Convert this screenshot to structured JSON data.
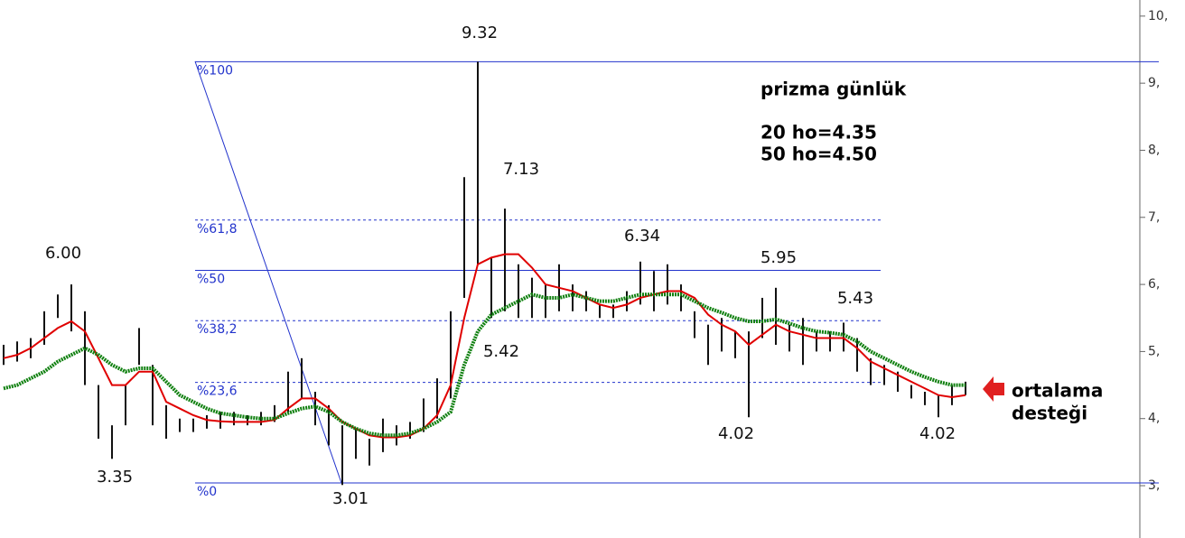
{
  "chart_data": {
    "type": "hilo",
    "annotations": [
      "9.32",
      "7.13",
      "6.34",
      "5.95",
      "5.43",
      "5.42",
      "6.00",
      "3.35",
      "3.01",
      "4.02",
      "4.02"
    ],
    "note_title": "prizma günlük",
    "note_lines": [
      "20 ho=4.35",
      "50 ho=4.50"
    ],
    "callout": [
      "ortalama",
      "desteği"
    ],
    "ylim": [
      2.22,
      10.24
    ],
    "yticks": [
      {
        "value": 10,
        "label": "10,"
      },
      {
        "value": 9,
        "label": "9,"
      },
      {
        "value": 8,
        "label": "8,"
      },
      {
        "value": 7,
        "label": "7,"
      },
      {
        "value": 6,
        "label": "6,"
      },
      {
        "value": 5,
        "label": "5,"
      },
      {
        "value": 4,
        "label": "4,"
      },
      {
        "value": 3,
        "label": "3,"
      }
    ],
    "fib_levels": [
      {
        "label": "%100",
        "value": 9.32
      },
      {
        "label": "%61,8",
        "value": 6.96
      },
      {
        "label": "%50",
        "value": 6.21
      },
      {
        "label": "%38,2",
        "value": 5.46
      },
      {
        "label": "%23,6",
        "value": 4.54
      },
      {
        "label": "%0",
        "value": 3.04
      }
    ],
    "categories": [
      null,
      null,
      null,
      null,
      null,
      null,
      null,
      null,
      null,
      null,
      null,
      null,
      null,
      null,
      null,
      null,
      null,
      null,
      null,
      null,
      null,
      null,
      null,
      null,
      null,
      null,
      null,
      null,
      null,
      null,
      null,
      null,
      null,
      null,
      null,
      null,
      null,
      null,
      null,
      null,
      null,
      null,
      null,
      null,
      null,
      null,
      null,
      null,
      null,
      null,
      null,
      null,
      null,
      null,
      null,
      null,
      null,
      null,
      null,
      null,
      null,
      null,
      null,
      null,
      null,
      null,
      null,
      null,
      null,
      null,
      null,
      null
    ],
    "high": [
      5.1,
      5.15,
      5.2,
      5.6,
      5.85,
      6.0,
      5.6,
      4.5,
      3.9,
      4.5,
      5.35,
      4.8,
      4.2,
      4.0,
      4.0,
      4.05,
      4.1,
      4.1,
      4.05,
      4.1,
      4.2,
      4.7,
      4.9,
      4.4,
      4.2,
      3.9,
      3.85,
      3.7,
      4.0,
      3.9,
      3.95,
      4.3,
      4.6,
      5.6,
      7.6,
      9.32,
      6.4,
      7.13,
      6.3,
      6.1,
      6.0,
      6.3,
      6.0,
      5.9,
      5.7,
      5.7,
      5.9,
      6.34,
      6.2,
      6.3,
      6.0,
      5.6,
      5.4,
      5.5,
      5.3,
      5.3,
      5.8,
      5.95,
      5.4,
      5.5,
      5.3,
      5.3,
      5.43,
      5.2,
      4.9,
      4.8,
      4.7,
      4.5,
      4.4,
      4.35,
      4.5,
      4.55
    ],
    "low": [
      4.8,
      4.85,
      4.9,
      5.1,
      5.5,
      5.3,
      4.5,
      3.7,
      3.4,
      3.9,
      4.8,
      3.9,
      3.7,
      3.8,
      3.8,
      3.85,
      3.85,
      3.9,
      3.9,
      3.9,
      3.95,
      4.1,
      4.3,
      3.9,
      3.6,
      3.01,
      3.4,
      3.3,
      3.5,
      3.6,
      3.7,
      3.8,
      4.0,
      4.3,
      5.8,
      6.3,
      5.5,
      5.6,
      5.5,
      5.5,
      5.5,
      5.6,
      5.6,
      5.6,
      5.5,
      5.5,
      5.6,
      5.7,
      5.6,
      5.7,
      5.6,
      5.2,
      4.8,
      5.0,
      4.9,
      4.02,
      5.2,
      5.1,
      5.0,
      4.8,
      5.0,
      5.0,
      5.0,
      4.7,
      4.5,
      4.5,
      4.4,
      4.3,
      4.2,
      4.02,
      4.2,
      4.35
    ],
    "series": [
      {
        "name": "20 ho",
        "color": "#e00000",
        "values": [
          4.9,
          4.95,
          5.05,
          5.2,
          5.35,
          5.45,
          5.3,
          4.9,
          4.5,
          4.5,
          4.7,
          4.7,
          4.25,
          4.15,
          4.05,
          3.98,
          3.96,
          3.95,
          3.95,
          3.95,
          3.98,
          4.15,
          4.3,
          4.3,
          4.15,
          3.95,
          3.85,
          3.75,
          3.72,
          3.72,
          3.75,
          3.85,
          4.05,
          4.5,
          5.5,
          6.3,
          6.4,
          6.45,
          6.45,
          6.25,
          6.0,
          5.95,
          5.9,
          5.8,
          5.7,
          5.65,
          5.7,
          5.8,
          5.85,
          5.9,
          5.9,
          5.8,
          5.55,
          5.4,
          5.3,
          5.1,
          5.25,
          5.4,
          5.3,
          5.25,
          5.2,
          5.2,
          5.2,
          5.05,
          4.85,
          4.75,
          4.65,
          4.55,
          4.45,
          4.35,
          4.32,
          4.35
        ]
      },
      {
        "name": "50 ho",
        "color": "#108010",
        "values": [
          4.45,
          4.5,
          4.6,
          4.7,
          4.85,
          4.95,
          5.05,
          4.95,
          4.8,
          4.7,
          4.75,
          4.75,
          4.55,
          4.35,
          4.25,
          4.15,
          4.08,
          4.05,
          4.02,
          4.0,
          4.0,
          4.08,
          4.15,
          4.18,
          4.1,
          3.95,
          3.85,
          3.78,
          3.75,
          3.75,
          3.78,
          3.85,
          3.95,
          4.1,
          4.8,
          5.3,
          5.55,
          5.65,
          5.75,
          5.85,
          5.8,
          5.8,
          5.85,
          5.8,
          5.75,
          5.75,
          5.8,
          5.85,
          5.85,
          5.85,
          5.85,
          5.75,
          5.65,
          5.58,
          5.5,
          5.45,
          5.45,
          5.48,
          5.42,
          5.35,
          5.3,
          5.28,
          5.25,
          5.15,
          5.0,
          4.9,
          4.8,
          4.7,
          4.62,
          4.55,
          4.5,
          4.5
        ]
      }
    ]
  }
}
